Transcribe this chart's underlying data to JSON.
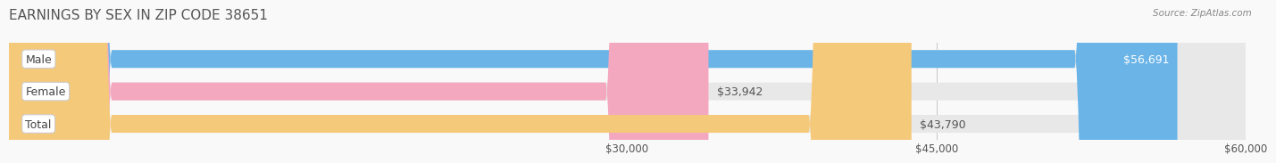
{
  "title": "EARNINGS BY SEX IN ZIP CODE 38651",
  "source": "Source: ZipAtlas.com",
  "categories": [
    "Male",
    "Female",
    "Total"
  ],
  "values": [
    56691,
    33942,
    43790
  ],
  "bar_colors": [
    "#6ab4e8",
    "#f4a8c0",
    "#f5c97a"
  ],
  "bar_bg_color": "#e8e8e8",
  "x_min": 0,
  "x_max": 60000,
  "x_ticks": [
    30000,
    45000,
    60000
  ],
  "x_tick_labels": [
    "$30,000",
    "$45,000",
    "$60,000"
  ],
  "value_labels": [
    "$56,691",
    "$33,942",
    "$43,790"
  ],
  "background_color": "#f9f9f9",
  "title_fontsize": 11,
  "bar_height": 0.55,
  "label_fontsize": 9
}
